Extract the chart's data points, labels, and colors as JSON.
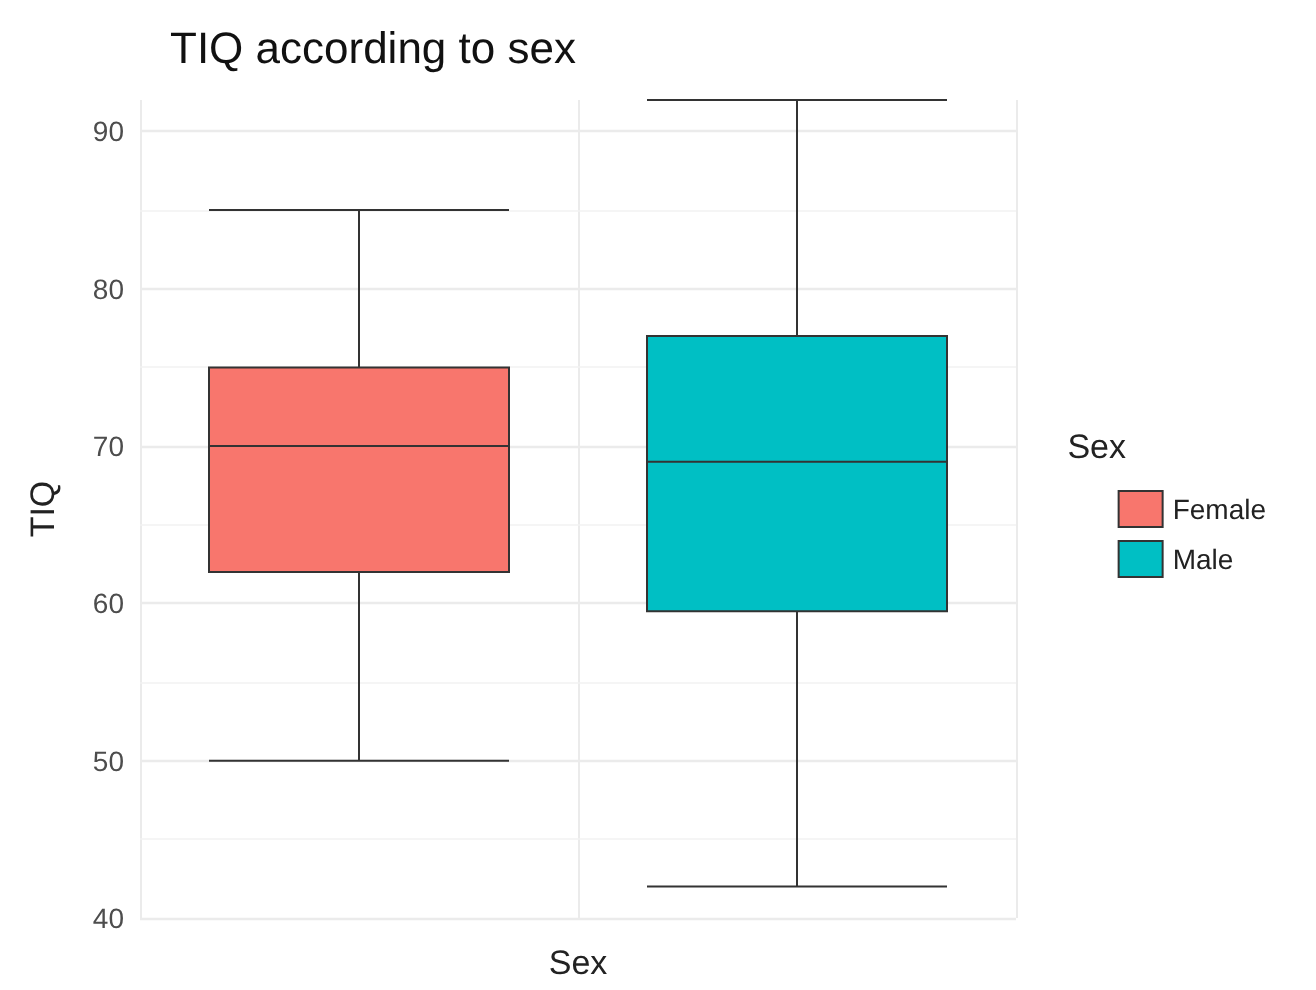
{
  "chart_data": {
    "type": "box",
    "title": "TIQ according to sex",
    "xlabel": "Sex",
    "ylabel": "TIQ",
    "legend_title": "Sex",
    "categories": [
      null,
      null
    ],
    "series": [
      {
        "name": "Female",
        "color": "#f8766d",
        "boxes": [
          {
            "low": 50,
            "q1": 62,
            "median": 70,
            "q3": 75,
            "high": 85
          },
          null
        ]
      },
      {
        "name": "Male",
        "color": "#00bfc4",
        "boxes": [
          null,
          {
            "low": 42,
            "q1": 59.5,
            "median": 69,
            "q3": 77,
            "high": 92
          }
        ]
      }
    ],
    "ylim": [
      40,
      92
    ],
    "yticks": [
      40,
      50,
      60,
      70,
      80,
      90
    ],
    "grid": true,
    "legend": "right",
    "tick_labels": "y"
  }
}
